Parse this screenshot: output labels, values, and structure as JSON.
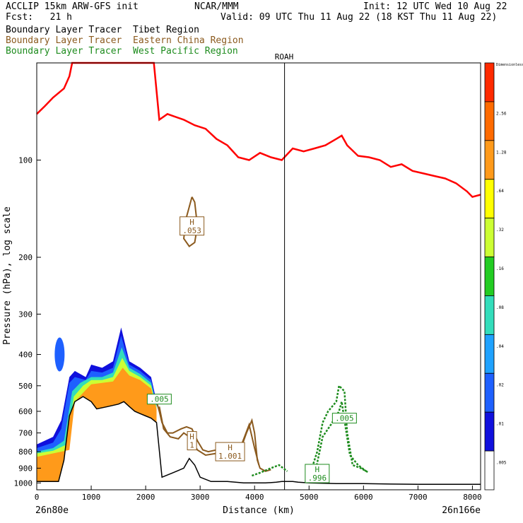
{
  "header": {
    "left_line1": "ACCLIP 15km ARW-GFS init",
    "left_line2": "Fcst:   21 h",
    "center_line1": "NCAR/MMM",
    "right_line1": "Init: 12 UTC Wed 10 Aug 22",
    "right_line2": "Valid: 09 UTC Thu 11 Aug 22 (18 KST Thu 11 Aug 22)"
  },
  "legend": [
    {
      "text": "Boundary Layer Tracer  Tibet Region",
      "color": "#000000"
    },
    {
      "text": "Boundary Layer Tracer  Eastern China Region",
      "color": "#8b5a1e"
    },
    {
      "text": "Boundary Layer Tracer  West Pacific Region",
      "color": "#1e8c1e"
    }
  ],
  "station_label": "ROAH",
  "chart_data": {
    "type": "area",
    "xlabel": "Distance (km)",
    "ylabel": "Pressure (hPa), log scale",
    "xlim": [
      0,
      8150
    ],
    "ylim_hPa": [
      1050,
      50
    ],
    "y_log_scale": true,
    "x_ticks": [
      0,
      1000,
      2000,
      3000,
      4000,
      5000,
      6000,
      7000,
      8000
    ],
    "y_ticks": [
      100,
      200,
      300,
      400,
      500,
      600,
      700,
      800,
      900,
      1000
    ],
    "x_start_label": "26n80e",
    "x_end_label": "26n166e",
    "station_x_km": 4550,
    "colorbar": {
      "title": "Dimensionless",
      "levels": [
        "",
        "2.56",
        "1.28",
        ".64",
        ".32",
        ".16",
        ".08",
        ".04",
        ".02",
        ".01",
        ".005"
      ],
      "colors": [
        "#ff2a00",
        "#ff6a00",
        "#ff9a1a",
        "#ffff00",
        "#ccff33",
        "#22cc22",
        "#33ddbb",
        "#1fa2ff",
        "#1e60ff",
        "#1010dd",
        "#ffffff"
      ]
    },
    "tropopause_red": {
      "color": "#ff0000",
      "x": [
        0,
        150,
        300,
        500,
        600,
        650,
        2150,
        2250,
        2400,
        2500,
        2700,
        2900,
        3100,
        3300,
        3500,
        3700,
        3900,
        4100,
        4300,
        4500,
        4700,
        4900,
        5100,
        5300,
        5500,
        5600,
        5700,
        5900,
        6100,
        6300,
        6500,
        6700,
        6900,
        7100,
        7300,
        7500,
        7700,
        7900,
        8000,
        8150
      ],
      "p_hPa": [
        72,
        68,
        64,
        60,
        55,
        50,
        50,
        75,
        72,
        73,
        75,
        78,
        80,
        86,
        90,
        98,
        100,
        95,
        98,
        100,
        92,
        94,
        92,
        90,
        86,
        84,
        90,
        97,
        98,
        100,
        105,
        103,
        108,
        110,
        112,
        114,
        118,
        125,
        130,
        128
      ]
    },
    "terrain_black": {
      "color": "#000000",
      "x": [
        0,
        200,
        400,
        500,
        600,
        700,
        850,
        1000,
        1100,
        1300,
        1500,
        1600,
        1700,
        1800,
        1900,
        2000,
        2100,
        2200,
        2300,
        2500,
        2700,
        2800,
        2900,
        3000,
        3200,
        3500,
        3800,
        4200,
        4400,
        4500,
        4700,
        4800,
        5000,
        5500,
        6000,
        6500,
        7000,
        7500,
        8150
      ],
      "p_hPa": [
        990,
        990,
        990,
        850,
        620,
        560,
        540,
        560,
        590,
        580,
        570,
        560,
        580,
        600,
        610,
        620,
        630,
        650,
        960,
        930,
        900,
        840,
        880,
        960,
        990,
        990,
        1000,
        1000,
        995,
        990,
        990,
        995,
        1000,
        1005,
        1005,
        1008,
        1010,
        1010,
        1010
      ]
    },
    "contour_labels": [
      {
        "text": "H\n.053",
        "x_km": 2850,
        "p_hPa": 160,
        "color": "#8b5a1e"
      },
      {
        "text": ".005",
        "x_km": 2250,
        "p_hPa": 550,
        "color": "#1e8c1e"
      },
      {
        "text": "H\n1",
        "x_km": 2850,
        "p_hPa": 740,
        "color": "#8b5a1e"
      },
      {
        "text": "H\n1.001",
        "x_km": 3550,
        "p_hPa": 800,
        "color": "#8b5a1e"
      },
      {
        "text": ".005",
        "x_km": 5650,
        "p_hPa": 630,
        "color": "#1e8c1e"
      },
      {
        "text": "H\n.996",
        "x_km": 5150,
        "p_hPa": 935,
        "color": "#1e8c1e"
      }
    ]
  }
}
